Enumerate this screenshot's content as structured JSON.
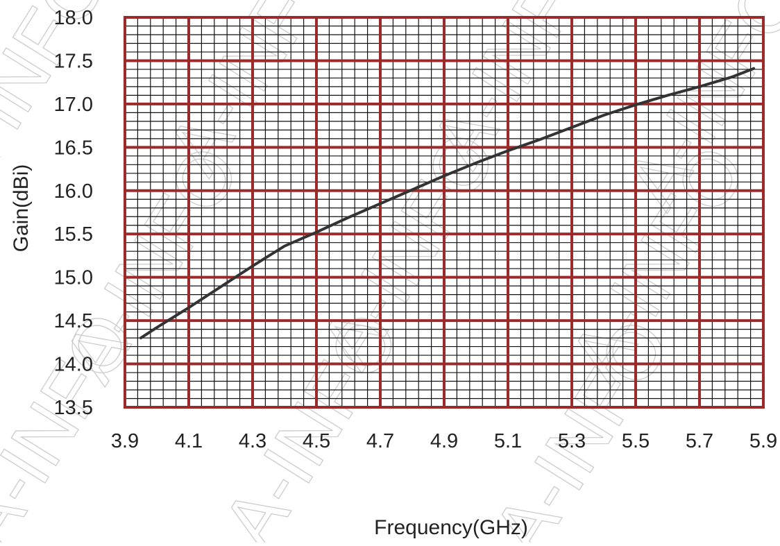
{
  "chart_data": {
    "type": "line",
    "xlabel": "Frequency(GHz)",
    "ylabel": "Gain(dBi)",
    "xlim": [
      3.9,
      5.9
    ],
    "ylim": [
      13.5,
      18.0
    ],
    "x_ticks": [
      "3.9",
      "4.1",
      "4.3",
      "4.5",
      "4.7",
      "4.9",
      "5.1",
      "5.3",
      "5.5",
      "5.7",
      "5.9"
    ],
    "y_ticks": [
      "13.5",
      "14.0",
      "14.5",
      "15.0",
      "15.5",
      "16.0",
      "16.5",
      "17.0",
      "17.5",
      "18.0"
    ],
    "grid": true,
    "series": [
      {
        "x": [
          3.95,
          4.0,
          4.1,
          4.2,
          4.3,
          4.4,
          4.5,
          4.6,
          4.7,
          4.8,
          4.9,
          5.0,
          5.1,
          5.2,
          5.3,
          5.4,
          5.5,
          5.6,
          5.7,
          5.8,
          5.87
        ],
        "y": [
          14.3,
          14.42,
          14.65,
          14.89,
          15.13,
          15.36,
          15.52,
          15.69,
          15.85,
          16.01,
          16.17,
          16.32,
          16.46,
          16.59,
          16.73,
          16.87,
          16.99,
          17.1,
          17.2,
          17.31,
          17.41
        ]
      }
    ]
  },
  "watermark": {
    "text": "A-INFO"
  },
  "colors": {
    "grid_major": "#9b2a2a",
    "grid_minor": "#111111",
    "line": "#333333",
    "watermark": "#c8c8c8"
  }
}
